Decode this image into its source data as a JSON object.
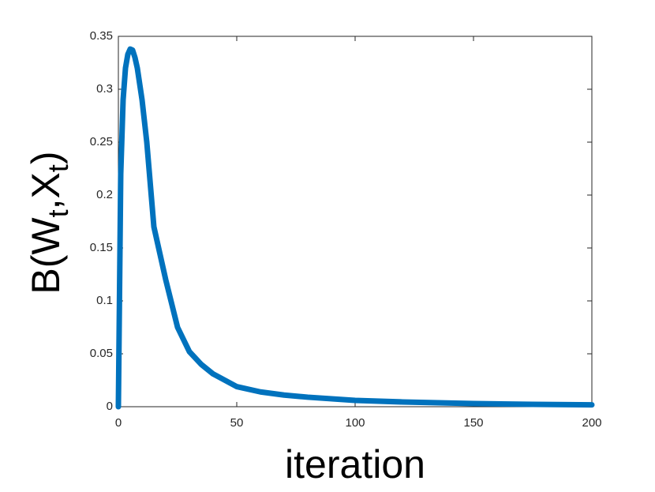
{
  "chart_data": {
    "type": "line",
    "xlabel": "iteration",
    "ylabel": [
      "B(W",
      "t",
      ",X",
      "t",
      ")"
    ],
    "x": [
      0,
      1,
      2,
      3,
      4,
      5,
      6,
      7,
      8,
      10,
      12,
      15,
      20,
      25,
      30,
      35,
      40,
      50,
      60,
      70,
      80,
      100,
      120,
      150,
      175,
      200
    ],
    "series": [
      {
        "color": "#0072bd",
        "values": [
          0,
          0.22,
          0.29,
          0.32,
          0.333,
          0.338,
          0.337,
          0.33,
          0.32,
          0.29,
          0.25,
          0.17,
          0.12,
          0.075,
          0.052,
          0.04,
          0.031,
          0.019,
          0.014,
          0.011,
          0.009,
          0.006,
          0.0045,
          0.003,
          0.0022,
          0.0018
        ]
      }
    ],
    "xlim": [
      0,
      200
    ],
    "xticks": [
      0,
      50,
      100,
      150,
      200
    ],
    "ylim": [
      0,
      0.35
    ],
    "yticks": [
      0,
      0.05,
      0.1,
      0.15,
      0.2,
      0.25,
      0.3,
      0.35
    ],
    "grid": false
  }
}
